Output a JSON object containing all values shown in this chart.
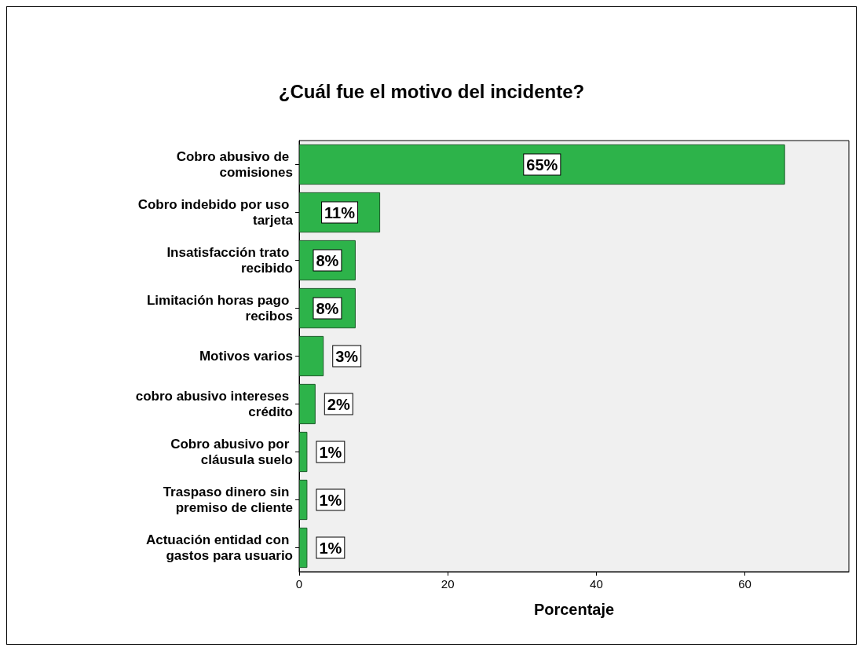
{
  "chart_data": {
    "type": "bar",
    "orientation": "horizontal",
    "title": "¿Cuál fue el motivo del incidente?",
    "xlabel": "Porcentaje",
    "categories": [
      "Cobro abusivo de comisiones",
      "Cobro indebido por uso tarjeta",
      "Insatisfacción trato recibido",
      "Limitación horas pago recibos",
      "Motivos varios",
      "cobro abusivo intereses crédito",
      "Cobro abusivo por cláusula suelo",
      "Traspaso dinero sin premiso de cliente",
      "Actuación entidad con gastos para usuario"
    ],
    "values": [
      65.4,
      10.9,
      7.6,
      7.6,
      3.3,
      2.2,
      1.1,
      1.1,
      1.1
    ],
    "value_labels": [
      "65%",
      "11%",
      "8%",
      "8%",
      "3%",
      "2%",
      "1%",
      "1%",
      "1%"
    ],
    "color": "#2db34a",
    "xlim": [
      0,
      74
    ],
    "xticks": [
      0,
      20,
      40,
      60
    ],
    "grid": false
  }
}
